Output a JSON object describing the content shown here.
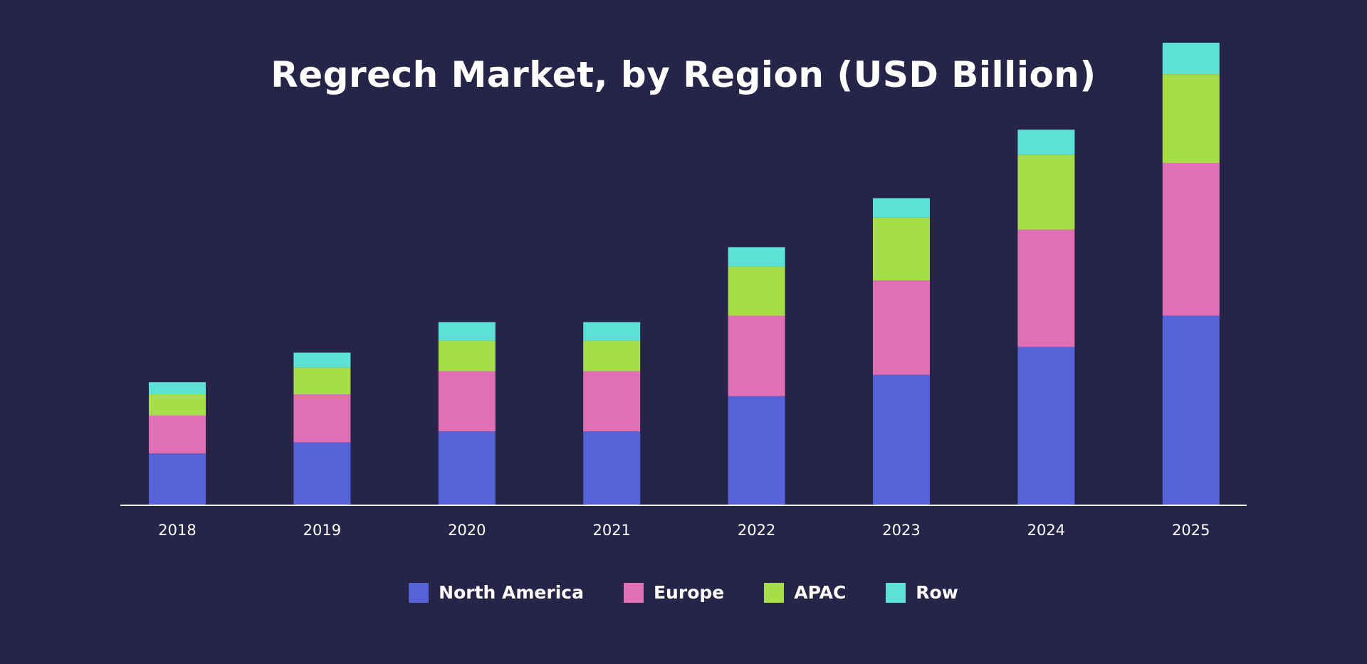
{
  "chart_data": {
    "type": "bar",
    "stacked": true,
    "title": "Regrech Market, by Region (USD Billion)",
    "xlabel": "",
    "ylabel": "",
    "categories": [
      "2018",
      "2019",
      "2020",
      "2021",
      "2022",
      "2023",
      "2024",
      "2025"
    ],
    "series": [
      {
        "name": "North America",
        "color": "#5563d6",
        "values": [
          5.6,
          6.8,
          8.0,
          8.0,
          11.8,
          14.1,
          17.1,
          20.5
        ]
      },
      {
        "name": "Europe",
        "color": "#e06fb4",
        "values": [
          4.1,
          5.2,
          6.5,
          6.5,
          8.7,
          10.2,
          12.7,
          16.5
        ]
      },
      {
        "name": "APAC",
        "color": "#a8dd4a",
        "values": [
          2.3,
          2.9,
          3.3,
          3.3,
          5.3,
          6.8,
          8.1,
          9.6
        ]
      },
      {
        "name": "Row",
        "color": "#5de0d6",
        "values": [
          1.3,
          1.6,
          2.0,
          2.0,
          2.1,
          2.1,
          2.7,
          3.4
        ]
      }
    ],
    "ylim": [
      0,
      50
    ],
    "grid": false,
    "y_axis_visible": false,
    "legend_position": "bottom-center",
    "background": "#262549",
    "axis_color": "#ffffff",
    "text_color": "#ffffff"
  }
}
